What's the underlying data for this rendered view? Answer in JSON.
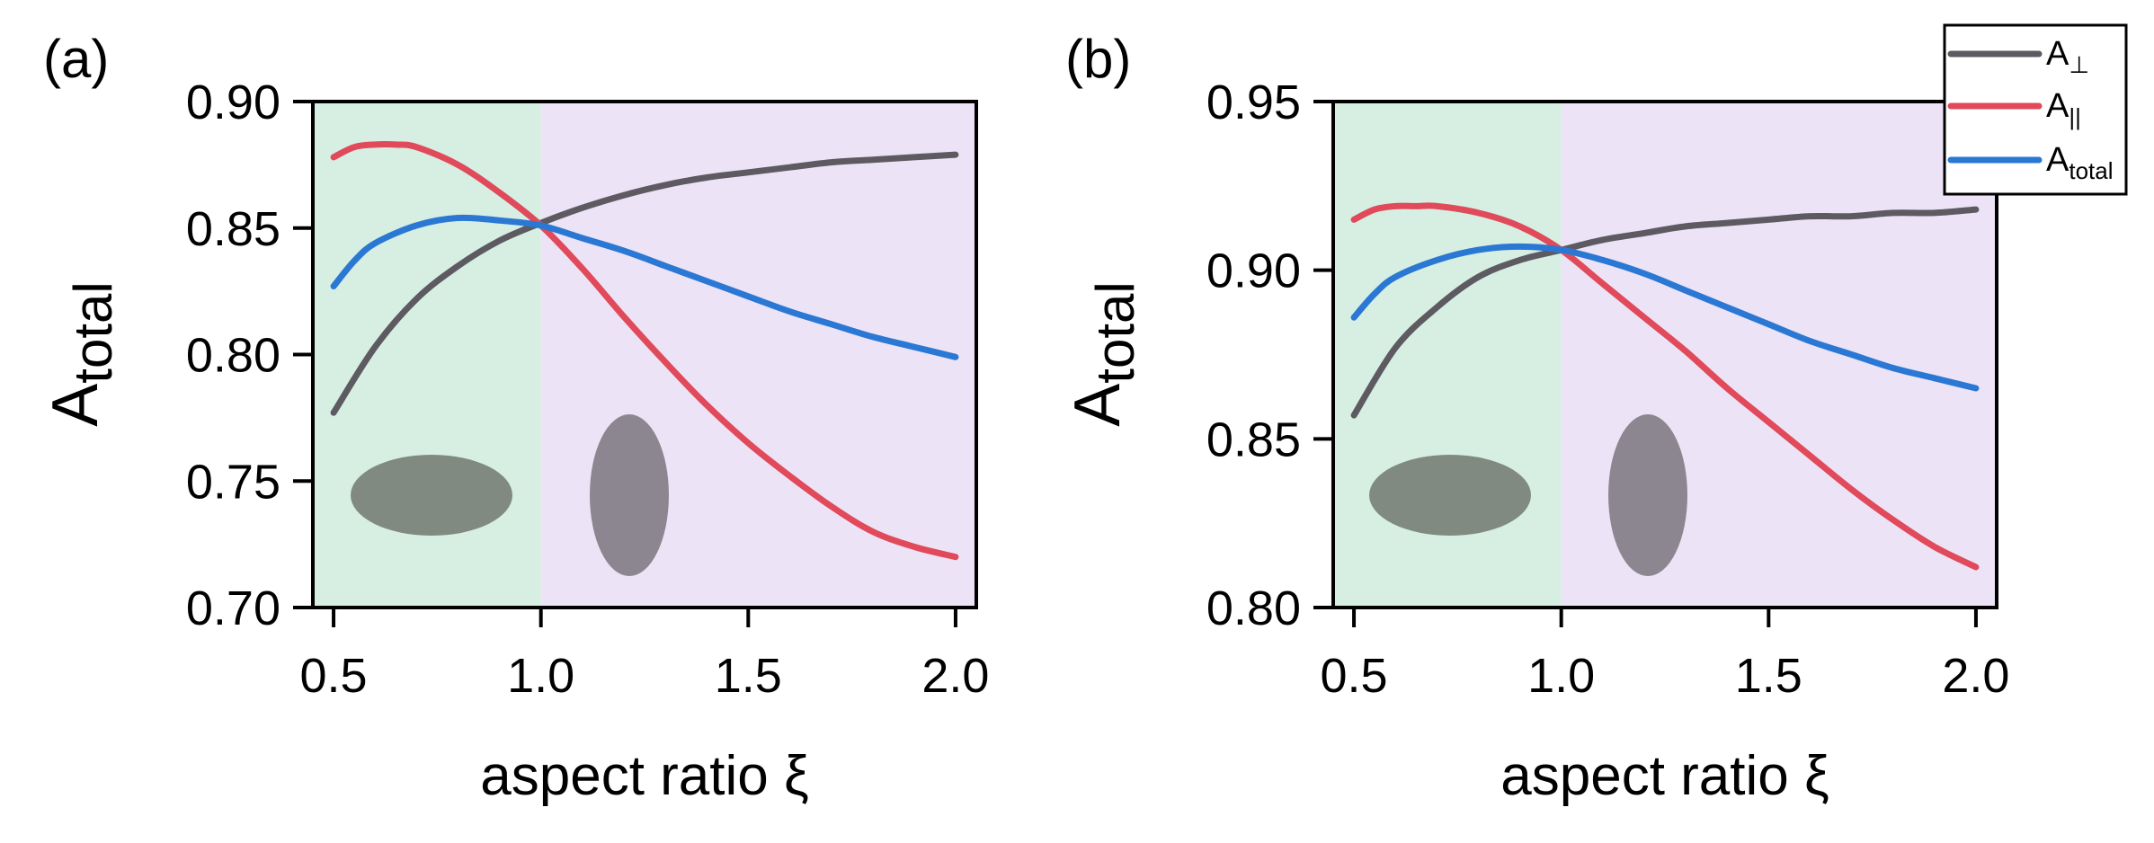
{
  "chart_data": [
    {
      "panel_label": "(a)",
      "type": "line",
      "xlabel": "aspect ratio ξ",
      "ylabel_main": "A",
      "ylabel_sub": "total",
      "xlim": [
        0.45,
        2.05
      ],
      "ylim": [
        0.7,
        0.9
      ],
      "xticks": [
        0.5,
        1.0,
        1.5,
        2.0
      ],
      "xtick_labels": [
        "0.5",
        "1.0",
        "1.5",
        "2.0"
      ],
      "yticks": [
        0.7,
        0.75,
        0.8,
        0.85,
        0.9
      ],
      "ytick_labels": [
        "0.70",
        "0.75",
        "0.80",
        "0.85",
        "0.90"
      ],
      "regions": [
        {
          "from": 0.45,
          "to": 1.0,
          "color": "#d6efe2"
        },
        {
          "from": 1.0,
          "to": 2.05,
          "color": "#ede3f6"
        }
      ],
      "series": [
        {
          "name": "A_perp",
          "color": "#5d5a62",
          "x": [
            0.5,
            0.6,
            0.7,
            0.8,
            0.9,
            1.0,
            1.1,
            1.2,
            1.3,
            1.4,
            1.5,
            1.6,
            1.7,
            1.8,
            1.9,
            2.0
          ],
          "y": [
            0.777,
            0.803,
            0.822,
            0.835,
            0.845,
            0.852,
            0.858,
            0.863,
            0.867,
            0.87,
            0.872,
            0.874,
            0.876,
            0.877,
            0.878,
            0.879
          ]
        },
        {
          "name": "A_par",
          "color": "#e04a5a",
          "x": [
            0.5,
            0.55,
            0.6,
            0.65,
            0.7,
            0.8,
            0.9,
            1.0,
            1.1,
            1.2,
            1.3,
            1.4,
            1.5,
            1.6,
            1.7,
            1.8,
            1.9,
            2.0
          ],
          "y": [
            0.878,
            0.882,
            0.883,
            0.883,
            0.882,
            0.875,
            0.864,
            0.851,
            0.834,
            0.815,
            0.797,
            0.78,
            0.765,
            0.752,
            0.74,
            0.73,
            0.724,
            0.72
          ]
        },
        {
          "name": "A_total",
          "color": "#2a78d4",
          "x": [
            0.5,
            0.55,
            0.6,
            0.7,
            0.8,
            0.9,
            1.0,
            1.1,
            1.2,
            1.3,
            1.4,
            1.5,
            1.6,
            1.7,
            1.8,
            1.9,
            2.0
          ],
          "y": [
            0.827,
            0.837,
            0.844,
            0.851,
            0.854,
            0.853,
            0.851,
            0.846,
            0.841,
            0.835,
            0.829,
            0.823,
            0.817,
            0.812,
            0.807,
            0.803,
            0.799
          ]
        }
      ]
    },
    {
      "panel_label": "(b)",
      "type": "line",
      "xlabel": "aspect ratio ξ",
      "ylabel_main": "A",
      "ylabel_sub": "total",
      "xlim": [
        0.45,
        2.05
      ],
      "ylim": [
        0.8,
        0.95
      ],
      "xticks": [
        0.5,
        1.0,
        1.5,
        2.0
      ],
      "xtick_labels": [
        "0.5",
        "1.0",
        "1.5",
        "2.0"
      ],
      "yticks": [
        0.8,
        0.85,
        0.9,
        0.95
      ],
      "ytick_labels": [
        "0.80",
        "0.85",
        "0.90",
        "0.95"
      ],
      "regions": [
        {
          "from": 0.45,
          "to": 1.0,
          "color": "#d6efe2"
        },
        {
          "from": 1.0,
          "to": 2.05,
          "color": "#ede3f6"
        }
      ],
      "series": [
        {
          "name": "A_perp",
          "color": "#5d5a62",
          "x": [
            0.5,
            0.6,
            0.7,
            0.8,
            0.9,
            1.0,
            1.1,
            1.2,
            1.3,
            1.4,
            1.5,
            1.6,
            1.7,
            1.8,
            1.9,
            2.0
          ],
          "y": [
            0.857,
            0.877,
            0.889,
            0.898,
            0.903,
            0.906,
            0.909,
            0.911,
            0.913,
            0.914,
            0.915,
            0.916,
            0.916,
            0.917,
            0.917,
            0.918
          ]
        },
        {
          "name": "A_par",
          "color": "#e04a5a",
          "x": [
            0.5,
            0.55,
            0.6,
            0.65,
            0.7,
            0.8,
            0.9,
            1.0,
            1.1,
            1.2,
            1.3,
            1.4,
            1.5,
            1.6,
            1.7,
            1.8,
            1.9,
            2.0
          ],
          "y": [
            0.915,
            0.918,
            0.919,
            0.919,
            0.919,
            0.917,
            0.913,
            0.906,
            0.896,
            0.886,
            0.876,
            0.865,
            0.855,
            0.845,
            0.835,
            0.826,
            0.818,
            0.812
          ]
        },
        {
          "name": "A_total",
          "color": "#2a78d4",
          "x": [
            0.5,
            0.55,
            0.6,
            0.7,
            0.8,
            0.9,
            1.0,
            1.1,
            1.2,
            1.3,
            1.4,
            1.5,
            1.6,
            1.7,
            1.8,
            1.9,
            2.0
          ],
          "y": [
            0.886,
            0.893,
            0.898,
            0.903,
            0.906,
            0.907,
            0.906,
            0.903,
            0.899,
            0.894,
            0.889,
            0.884,
            0.879,
            0.875,
            0.871,
            0.868,
            0.865
          ]
        }
      ]
    }
  ],
  "legend": {
    "items": [
      {
        "main": "A",
        "sub": "⊥",
        "color": "#5d5a62"
      },
      {
        "main": "A",
        "sub": "||",
        "color": "#e04a5a"
      },
      {
        "main": "A",
        "sub": "total",
        "color": "#2a78d4"
      }
    ]
  },
  "shape_colors": {
    "oblate": "#808a80",
    "prolate": "#8c8690"
  }
}
